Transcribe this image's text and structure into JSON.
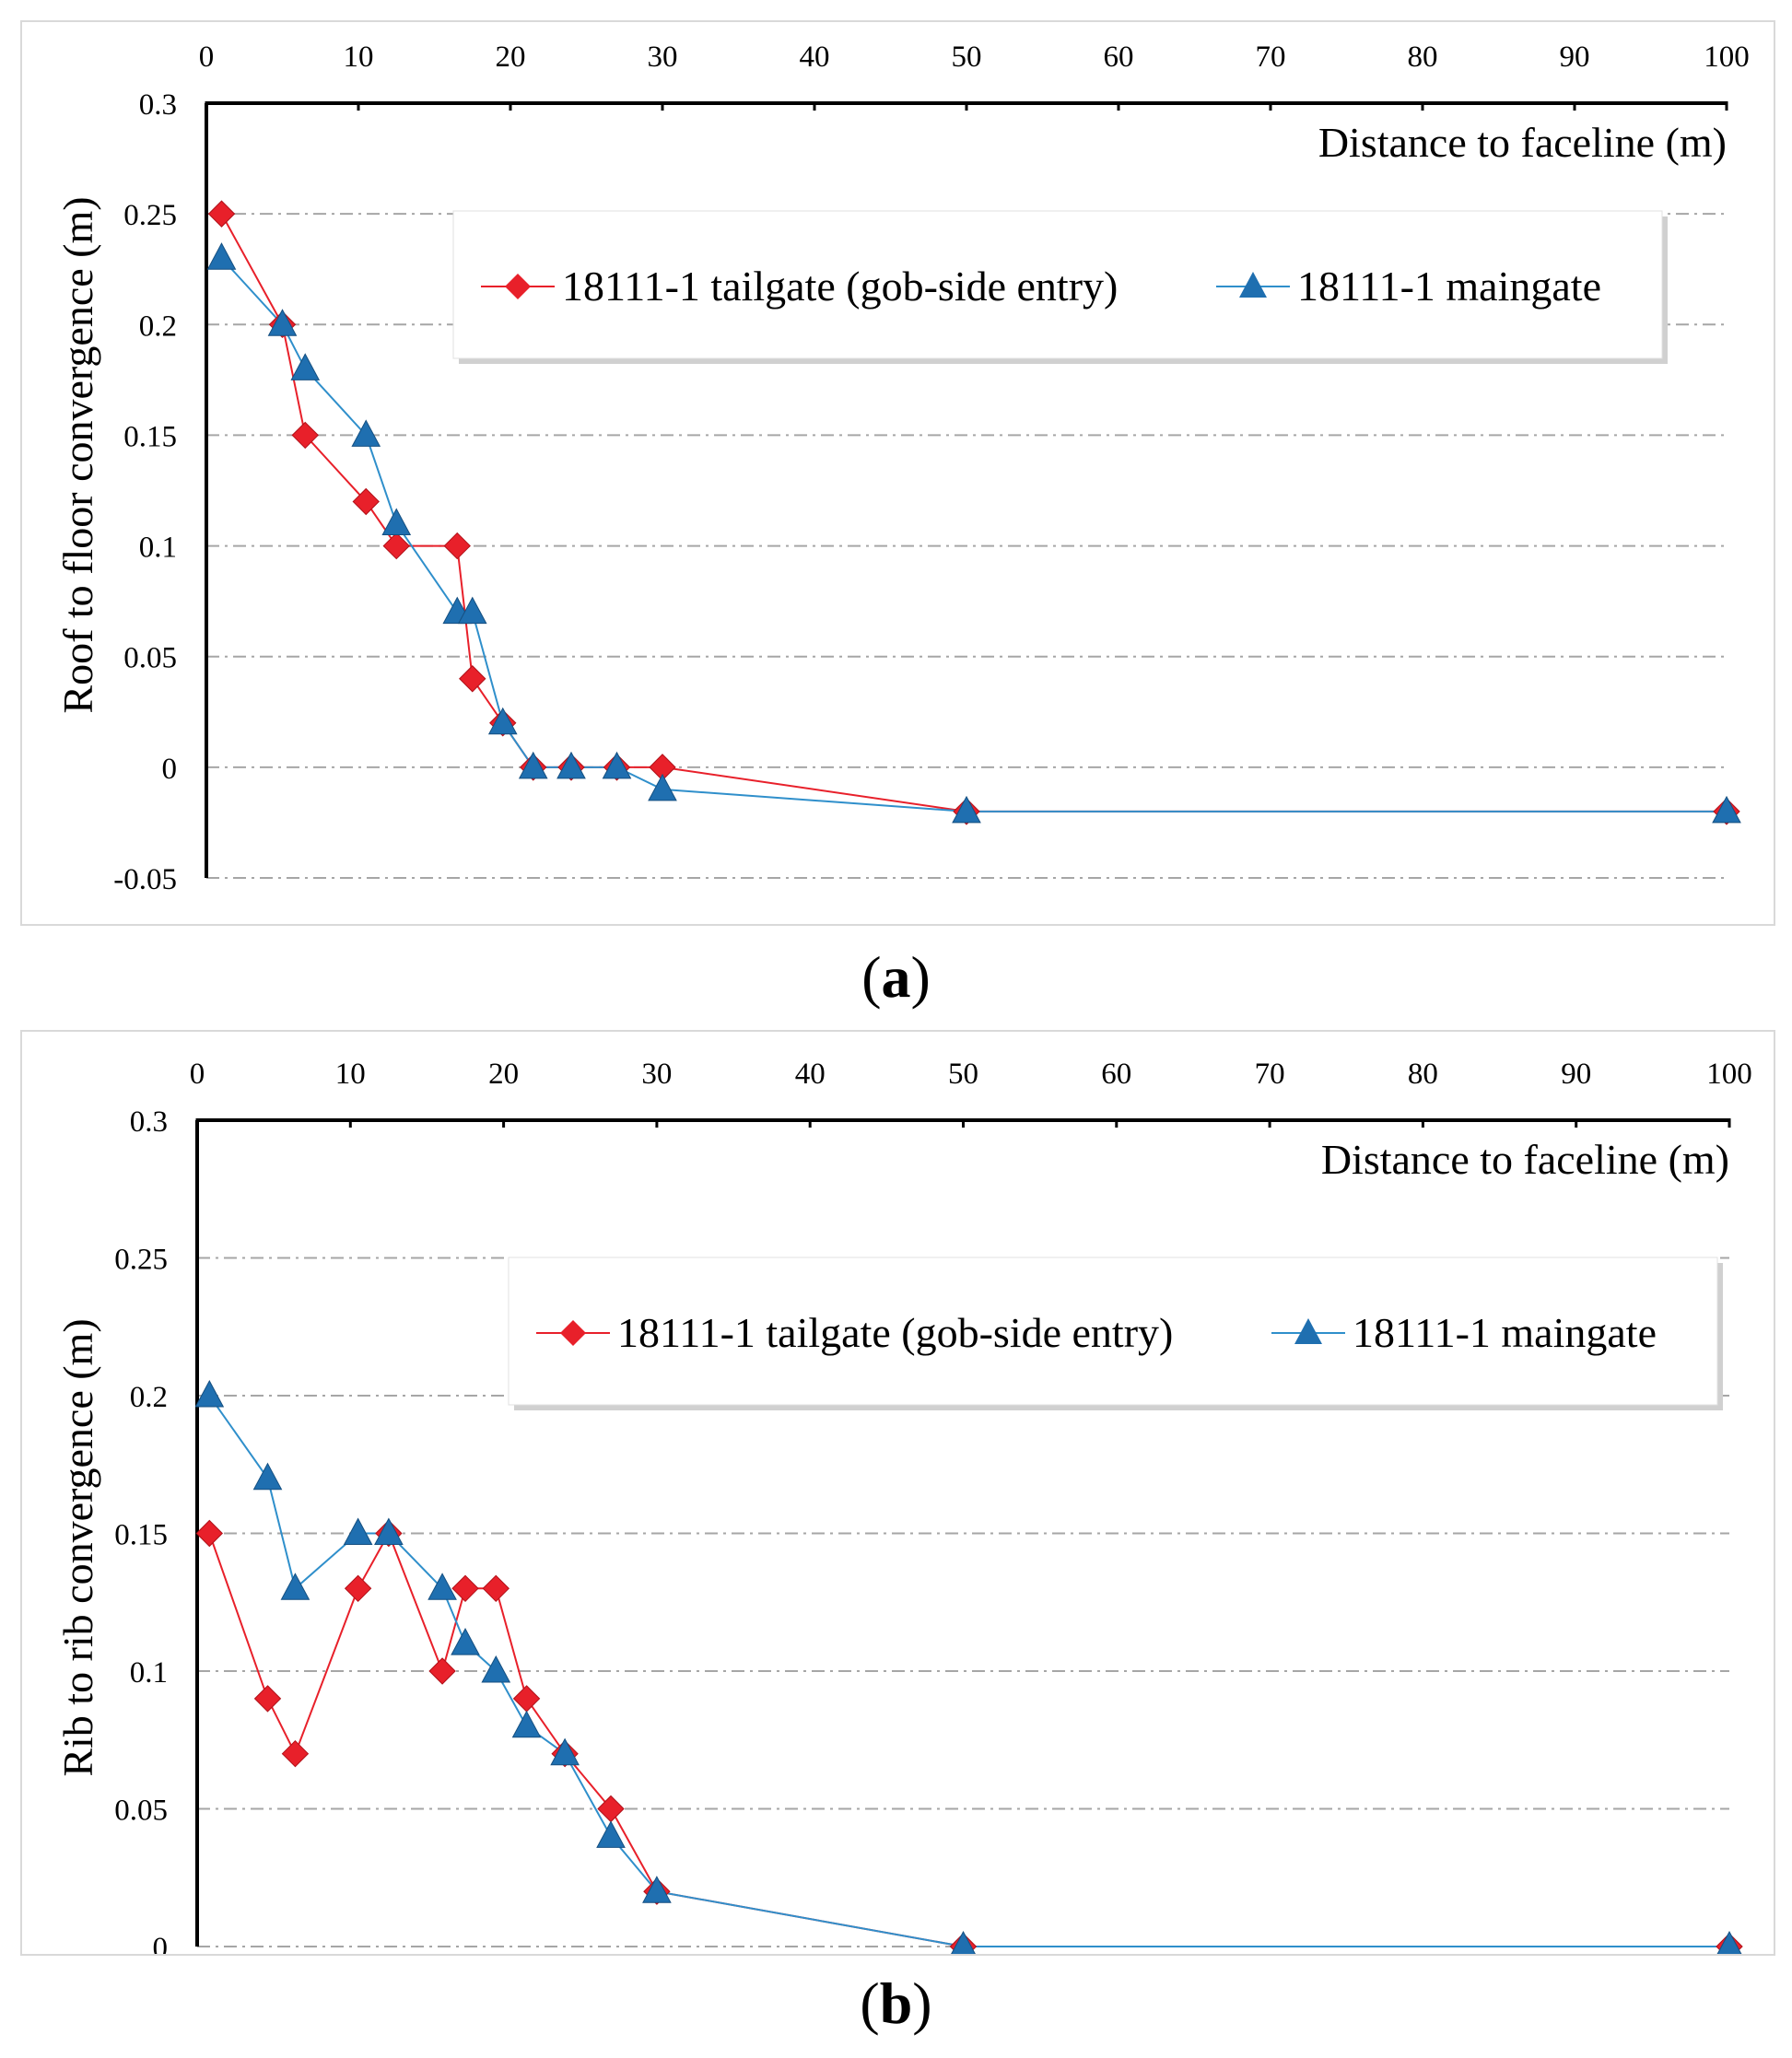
{
  "figure": {
    "caption_a": "a",
    "caption_b": "b"
  },
  "chart_data": [
    {
      "id": "a",
      "type": "line",
      "xlabel": "Distance to faceline (m)",
      "ylabel": "Roof to floor convergence (m)",
      "x_axis_position": "top",
      "xlim": [
        0,
        100
      ],
      "ylim": [
        -0.05,
        0.3
      ],
      "xticks": [
        0,
        10,
        20,
        30,
        40,
        50,
        60,
        70,
        80,
        90,
        100
      ],
      "yticks": [
        -0.05,
        0,
        0.05,
        0.1,
        0.15,
        0.2,
        0.25,
        0.3
      ],
      "ytick_labels": [
        "-0.05",
        "0",
        "0.05",
        "0.1",
        "0.15",
        "0.2",
        "0.25",
        "0.3"
      ],
      "grid": "horizontal dash-dot",
      "legend_position": "upper-right",
      "series": [
        {
          "name": "18111-1 tailgate (gob-side entry)",
          "color": "#e8202a",
          "marker": "diamond",
          "x": [
            1,
            5,
            6.5,
            10.5,
            12.5,
            16.5,
            17.5,
            19.5,
            21.5,
            24,
            27,
            30,
            50,
            100
          ],
          "y": [
            0.25,
            0.2,
            0.15,
            0.12,
            0.1,
            0.1,
            0.04,
            0.02,
            0,
            0,
            0,
            0,
            -0.02,
            -0.02
          ]
        },
        {
          "name": "18111-1 maingate",
          "color": "#2f8fcb",
          "marker": "triangle",
          "x": [
            1,
            5,
            6.5,
            10.5,
            12.5,
            16.5,
            17.5,
            19.5,
            21.5,
            24,
            27,
            30,
            50,
            100
          ],
          "y": [
            0.23,
            0.2,
            0.18,
            0.15,
            0.11,
            0.07,
            0.07,
            0.02,
            0,
            0,
            0,
            -0.01,
            -0.02,
            -0.02
          ]
        }
      ]
    },
    {
      "id": "b",
      "type": "line",
      "xlabel": "Distance to faceline (m)",
      "ylabel": "Rib to rib convergence (m)",
      "x_axis_position": "top",
      "xlim": [
        0,
        100
      ],
      "ylim": [
        0,
        0.3
      ],
      "xticks": [
        0,
        10,
        20,
        30,
        40,
        50,
        60,
        70,
        80,
        90,
        100
      ],
      "yticks": [
        0,
        0.05,
        0.1,
        0.15,
        0.2,
        0.25,
        0.3
      ],
      "ytick_labels": [
        "0",
        "0.05",
        "0.1",
        "0.15",
        "0.2",
        "0.25",
        "0.3"
      ],
      "grid": "horizontal dash-dot",
      "legend_position": "upper-right",
      "series": [
        {
          "name": "18111-1 tailgate (gob-side entry)",
          "color": "#e8202a",
          "marker": "diamond",
          "x": [
            0.8,
            4.6,
            6.4,
            10.5,
            12.5,
            16,
            17.5,
            19.5,
            21.5,
            24,
            27,
            30,
            50,
            100
          ],
          "y": [
            0.15,
            0.09,
            0.07,
            0.13,
            0.15,
            0.1,
            0.13,
            0.13,
            0.09,
            0.07,
            0.05,
            0.02,
            0,
            0
          ]
        },
        {
          "name": "18111-1 maingate",
          "color": "#2f8fcb",
          "marker": "triangle",
          "x": [
            0.8,
            4.6,
            6.4,
            10.5,
            12.5,
            16,
            17.5,
            19.5,
            21.5,
            24,
            27,
            30,
            50,
            100
          ],
          "y": [
            0.2,
            0.17,
            0.13,
            0.15,
            0.15,
            0.13,
            0.11,
            0.1,
            0.08,
            0.07,
            0.04,
            0.02,
            0,
            0
          ]
        }
      ]
    }
  ]
}
